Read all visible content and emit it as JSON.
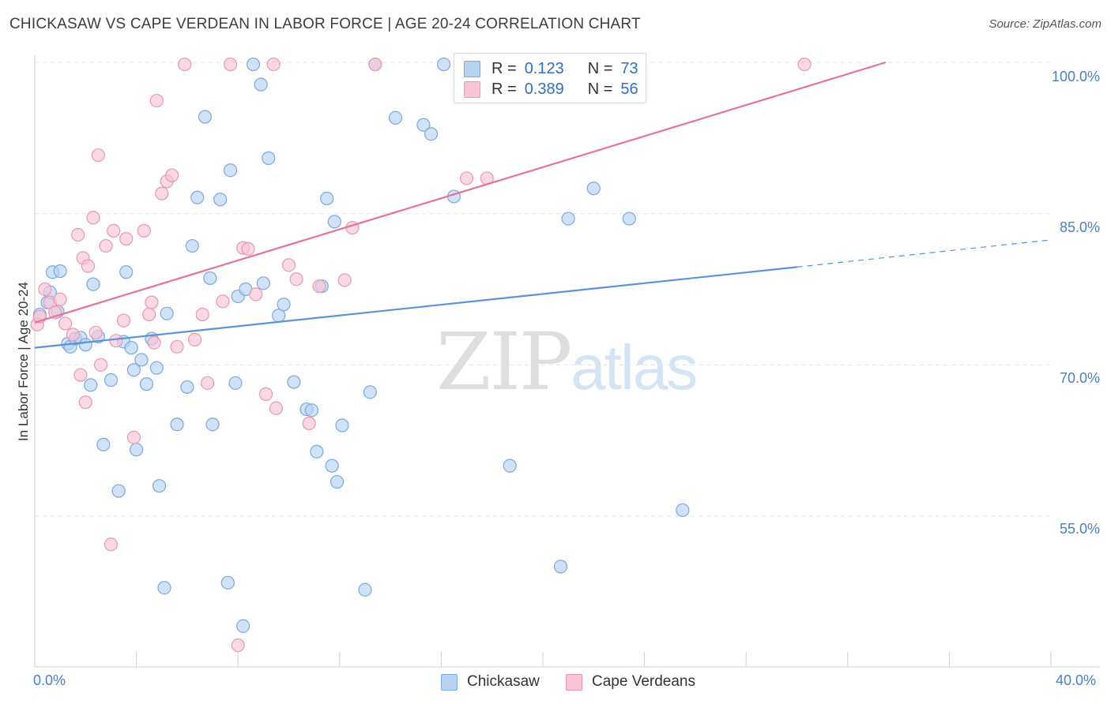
{
  "header": {
    "title": "CHICKASAW VS CAPE VERDEAN IN LABOR FORCE | AGE 20-24 CORRELATION CHART",
    "source": "Source: ZipAtlas.com"
  },
  "legend": {
    "r_label": "R =",
    "n_label": "N =",
    "series": [
      {
        "name": "Chickasaw",
        "r": "0.123",
        "n": "73",
        "fill": "#b8d2f2",
        "stroke": "#7aa8e0"
      },
      {
        "name": "Cape Verdeans",
        "r": "0.389",
        "n": "56",
        "fill": "#f8c4d6",
        "stroke": "#ec96b2"
      }
    ]
  },
  "watermark": {
    "zip": "ZIP",
    "atlas": "atlas"
  },
  "chart_data": {
    "type": "scatter",
    "title": "CHICKASAW VS CAPE VERDEAN IN LABOR FORCE | AGE 20-24 CORRELATION CHART",
    "xlabel": "",
    "ylabel": "In Labor Force | Age 20-24",
    "xlim": [
      0,
      40
    ],
    "ylim": [
      42,
      102
    ],
    "x_tick_labels": [
      {
        "value": 0,
        "label": "0.0%"
      },
      {
        "value": 40,
        "label": "40.0%"
      }
    ],
    "y_tick_labels": [
      {
        "value": 100,
        "label": "100.0%"
      },
      {
        "value": 85,
        "label": "85.0%"
      },
      {
        "value": 70,
        "label": "70.0%"
      },
      {
        "value": 55,
        "label": "55.0%"
      }
    ],
    "grid": true,
    "legend_position": "top-center",
    "series": [
      {
        "name": "Chickasaw",
        "color": "#5b93d8",
        "trend": {
          "x": [
            0,
            30,
            40
          ],
          "y": [
            71.7,
            79.7,
            82.4
          ],
          "solid_until": 30
        },
        "points": [
          [
            0.2,
            75.0
          ],
          [
            0.5,
            76.2
          ],
          [
            0.6,
            77.2
          ],
          [
            0.7,
            79.2
          ],
          [
            0.9,
            75.3
          ],
          [
            1.0,
            79.3
          ],
          [
            1.3,
            72.1
          ],
          [
            1.4,
            71.8
          ],
          [
            1.6,
            72.6
          ],
          [
            1.8,
            72.7
          ],
          [
            2.0,
            72.0
          ],
          [
            2.2,
            68.0
          ],
          [
            2.3,
            78.0
          ],
          [
            2.5,
            72.8
          ],
          [
            2.7,
            62.1
          ],
          [
            3.0,
            68.5
          ],
          [
            3.3,
            57.5
          ],
          [
            3.5,
            72.3
          ],
          [
            3.6,
            79.2
          ],
          [
            3.8,
            71.7
          ],
          [
            3.9,
            69.5
          ],
          [
            4.0,
            61.6
          ],
          [
            4.2,
            70.5
          ],
          [
            4.4,
            68.1
          ],
          [
            4.6,
            72.6
          ],
          [
            4.8,
            69.7
          ],
          [
            4.9,
            58.0
          ],
          [
            5.1,
            47.9
          ],
          [
            5.2,
            75.1
          ],
          [
            5.6,
            64.1
          ],
          [
            6.0,
            67.8
          ],
          [
            6.2,
            81.8
          ],
          [
            6.4,
            86.6
          ],
          [
            6.7,
            94.6
          ],
          [
            6.9,
            78.6
          ],
          [
            7.0,
            64.1
          ],
          [
            7.3,
            86.4
          ],
          [
            7.6,
            48.4
          ],
          [
            7.7,
            89.3
          ],
          [
            7.9,
            68.2
          ],
          [
            8.0,
            76.8
          ],
          [
            8.2,
            44.1
          ],
          [
            8.3,
            77.5
          ],
          [
            8.6,
            99.8
          ],
          [
            8.9,
            97.8
          ],
          [
            9.0,
            78.1
          ],
          [
            9.2,
            90.5
          ],
          [
            9.6,
            74.9
          ],
          [
            9.8,
            76.0
          ],
          [
            10.2,
            68.3
          ],
          [
            10.7,
            65.6
          ],
          [
            10.9,
            65.5
          ],
          [
            11.1,
            61.4
          ],
          [
            11.3,
            77.8
          ],
          [
            11.5,
            86.5
          ],
          [
            11.7,
            60.0
          ],
          [
            11.8,
            84.2
          ],
          [
            11.9,
            58.4
          ],
          [
            12.1,
            64.0
          ],
          [
            13.0,
            47.7
          ],
          [
            13.2,
            67.3
          ],
          [
            13.4,
            99.8
          ],
          [
            14.2,
            94.5
          ],
          [
            15.3,
            93.8
          ],
          [
            15.6,
            92.9
          ],
          [
            16.1,
            99.8
          ],
          [
            16.5,
            86.7
          ],
          [
            18.7,
            60.0
          ],
          [
            20.7,
            50.0
          ],
          [
            21.0,
            84.5
          ],
          [
            22.0,
            87.5
          ],
          [
            23.4,
            84.5
          ],
          [
            25.5,
            55.6
          ]
        ]
      },
      {
        "name": "Cape Verdeans",
        "color": "#e57399",
        "trend": {
          "x": [
            0,
            33.5
          ],
          "y": [
            74.2,
            100.0
          ],
          "solid_until": 33.5
        },
        "points": [
          [
            0.1,
            74.0
          ],
          [
            0.2,
            74.8
          ],
          [
            0.4,
            77.5
          ],
          [
            0.6,
            76.2
          ],
          [
            0.8,
            75.2
          ],
          [
            1.0,
            76.5
          ],
          [
            1.2,
            74.1
          ],
          [
            1.5,
            73.0
          ],
          [
            1.7,
            82.9
          ],
          [
            1.8,
            69.0
          ],
          [
            1.9,
            80.6
          ],
          [
            2.0,
            66.3
          ],
          [
            2.1,
            79.8
          ],
          [
            2.3,
            84.6
          ],
          [
            2.4,
            73.2
          ],
          [
            2.5,
            90.8
          ],
          [
            2.6,
            70.0
          ],
          [
            2.8,
            81.8
          ],
          [
            3.0,
            52.2
          ],
          [
            3.1,
            83.3
          ],
          [
            3.2,
            72.4
          ],
          [
            3.5,
            74.4
          ],
          [
            3.6,
            82.5
          ],
          [
            3.9,
            62.8
          ],
          [
            4.3,
            83.3
          ],
          [
            4.5,
            75.0
          ],
          [
            4.6,
            76.2
          ],
          [
            4.7,
            72.2
          ],
          [
            4.8,
            96.2
          ],
          [
            5.0,
            87.0
          ],
          [
            5.2,
            88.2
          ],
          [
            5.4,
            88.8
          ],
          [
            5.6,
            71.8
          ],
          [
            5.9,
            99.8
          ],
          [
            6.3,
            72.5
          ],
          [
            6.6,
            75.0
          ],
          [
            6.8,
            68.2
          ],
          [
            7.4,
            76.3
          ],
          [
            7.7,
            99.8
          ],
          [
            8.0,
            42.2
          ],
          [
            8.2,
            81.6
          ],
          [
            8.4,
            81.5
          ],
          [
            8.7,
            77.0
          ],
          [
            9.1,
            67.1
          ],
          [
            9.4,
            99.8
          ],
          [
            9.5,
            65.7
          ],
          [
            10.0,
            79.9
          ],
          [
            10.3,
            78.5
          ],
          [
            10.8,
            64.2
          ],
          [
            11.2,
            77.8
          ],
          [
            12.2,
            78.4
          ],
          [
            12.5,
            83.6
          ],
          [
            13.4,
            99.8
          ],
          [
            17.0,
            88.5
          ],
          [
            17.8,
            88.5
          ],
          [
            30.3,
            99.8
          ]
        ]
      }
    ]
  }
}
